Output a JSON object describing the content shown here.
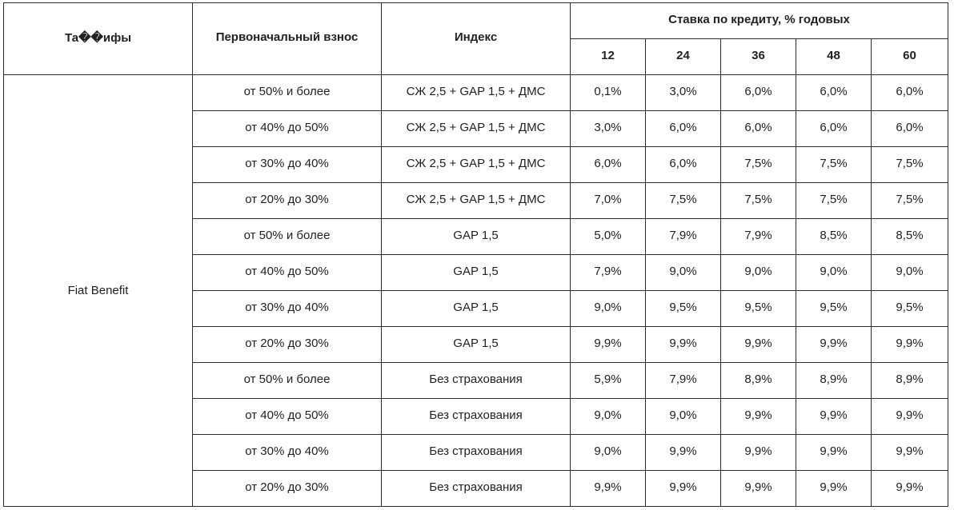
{
  "header": {
    "tariff": "Та��ифы",
    "down_payment": "Первоначальный взнос",
    "index": "Индекс",
    "rate": "Ставка по кредиту, % годовых",
    "terms": [
      "12",
      "24",
      "36",
      "48",
      "60"
    ]
  },
  "tariff_name": "Fiat Benefit",
  "rows": [
    {
      "down": "от 50% и более",
      "index": "СЖ 2,5 + GAP 1,5 + ДМС",
      "rates": [
        "0,1%",
        "3,0%",
        "6,0%",
        "6,0%",
        "6,0%"
      ]
    },
    {
      "down": "от 40% до 50%",
      "index": "СЖ 2,5 + GAP 1,5 + ДМС",
      "rates": [
        "3,0%",
        "6,0%",
        "6,0%",
        "6,0%",
        "6,0%"
      ]
    },
    {
      "down": "от 30% до 40%",
      "index": "СЖ 2,5 + GAP 1,5 + ДМС",
      "rates": [
        "6,0%",
        "6,0%",
        "7,5%",
        "7,5%",
        "7,5%"
      ]
    },
    {
      "down": "от 20% до 30%",
      "index": "СЖ 2,5 + GAP 1,5 + ДМС",
      "rates": [
        "7,0%",
        "7,5%",
        "7,5%",
        "7,5%",
        "7,5%"
      ]
    },
    {
      "down": "от 50% и более",
      "index": "GAP 1,5",
      "rates": [
        "5,0%",
        "7,9%",
        "7,9%",
        "8,5%",
        "8,5%"
      ]
    },
    {
      "down": "от 40% до 50%",
      "index": "GAP 1,5",
      "rates": [
        "7,9%",
        "9,0%",
        "9,0%",
        "9,0%",
        "9,0%"
      ]
    },
    {
      "down": "от 30% до 40%",
      "index": "GAP 1,5",
      "rates": [
        "9,0%",
        "9,5%",
        "9,5%",
        "9,5%",
        "9,5%"
      ]
    },
    {
      "down": "от 20% до 30%",
      "index": "GAP 1,5",
      "rates": [
        "9,9%",
        "9,9%",
        "9,9%",
        "9,9%",
        "9,9%"
      ]
    },
    {
      "down": "от 50% и более",
      "index": "Без страхования",
      "rates": [
        "5,9%",
        "7,9%",
        "8,9%",
        "8,9%",
        "8,9%"
      ]
    },
    {
      "down": "от 40% до 50%",
      "index": "Без страхования",
      "rates": [
        "9,0%",
        "9,0%",
        "9,9%",
        "9,9%",
        "9,9%"
      ]
    },
    {
      "down": "от 30% до 40%",
      "index": "Без страхования",
      "rates": [
        "9,0%",
        "9,9%",
        "9,9%",
        "9,9%",
        "9,9%"
      ]
    },
    {
      "down": "от 20% до 30%",
      "index": "Без страхования",
      "rates": [
        "9,9%",
        "9,9%",
        "9,9%",
        "9,9%",
        "9,9%"
      ]
    }
  ]
}
